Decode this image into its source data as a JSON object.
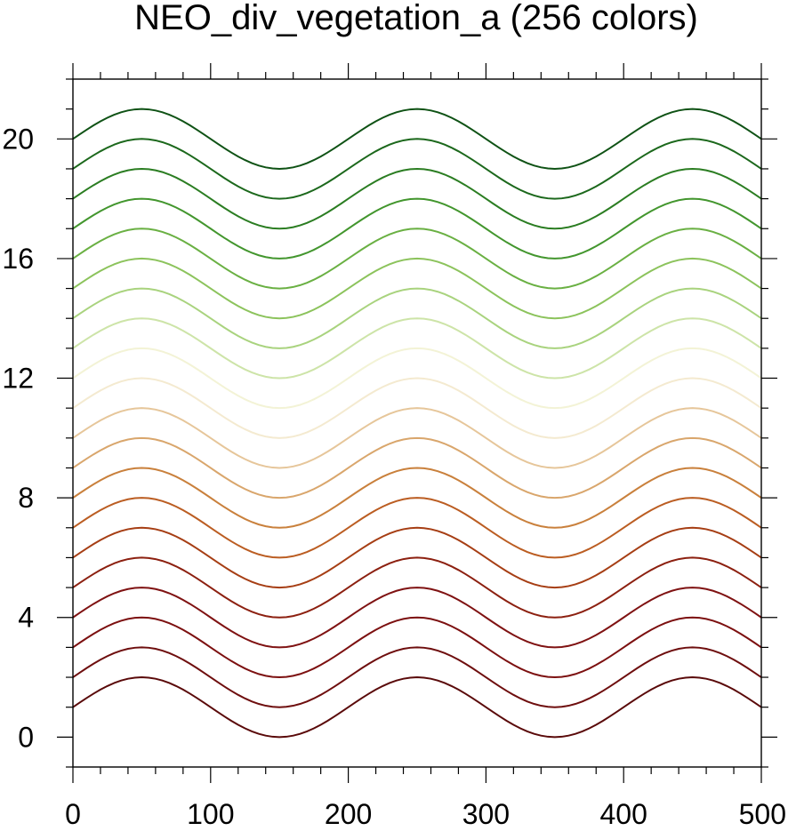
{
  "chart_data": {
    "type": "line",
    "title": "NEO_div_vegetation_a (256 colors)",
    "xlabel": "",
    "ylabel": "",
    "xlim": [
      0,
      500
    ],
    "ylim": [
      -1,
      22
    ],
    "x_ticks": [
      0,
      100,
      200,
      300,
      400,
      500
    ],
    "x_minor_step": 20,
    "y_ticks": [
      0,
      4,
      8,
      12,
      16,
      20
    ],
    "y_minor_step": 1,
    "grid": false,
    "legend": "none",
    "curve": {
      "form": "y = offset + sin(2*pi*x/200)",
      "period": 200,
      "amplitude": 1,
      "x_step": 5
    },
    "series": [
      {
        "offset": 1,
        "color": "#5a0a0a"
      },
      {
        "offset": 2,
        "color": "#6e0e0e"
      },
      {
        "offset": 3,
        "color": "#7c1010"
      },
      {
        "offset": 4,
        "color": "#7f1212"
      },
      {
        "offset": 5,
        "color": "#8c2010"
      },
      {
        "offset": 6,
        "color": "#a63e14"
      },
      {
        "offset": 7,
        "color": "#bb5d22"
      },
      {
        "offset": 8,
        "color": "#c9803c"
      },
      {
        "offset": 9,
        "color": "#d9a66c"
      },
      {
        "offset": 10,
        "color": "#e6c69a"
      },
      {
        "offset": 11,
        "color": "#f4ead0"
      },
      {
        "offset": 12,
        "color": "#f3f3d6"
      },
      {
        "offset": 13,
        "color": "#cde4a8"
      },
      {
        "offset": 14,
        "color": "#a9d37e"
      },
      {
        "offset": 15,
        "color": "#8cc35c"
      },
      {
        "offset": 16,
        "color": "#6ab043"
      },
      {
        "offset": 17,
        "color": "#43962e"
      },
      {
        "offset": 18,
        "color": "#2b7d22"
      },
      {
        "offset": 19,
        "color": "#1c681c"
      },
      {
        "offset": 20,
        "color": "#0f5215"
      }
    ]
  }
}
